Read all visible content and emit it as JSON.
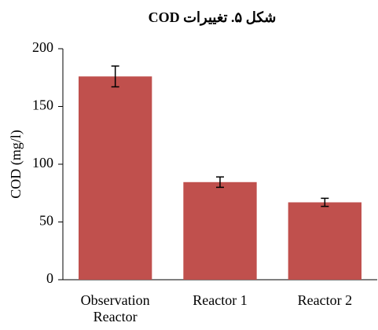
{
  "chart_data": {
    "type": "bar",
    "title": "شکل ۵. تغییرات COD",
    "y_label": "COD (mg/l)",
    "categories": [
      "Observation Reactor",
      "Reactor 1",
      "Reactor 2"
    ],
    "values": [
      176,
      84.5,
      67
    ],
    "errors": [
      9,
      4.5,
      3.5
    ],
    "color": "#c0504d",
    "ylim": [
      0,
      200
    ],
    "yticks": [
      0,
      50,
      100,
      150,
      200
    ],
    "grid": false
  }
}
